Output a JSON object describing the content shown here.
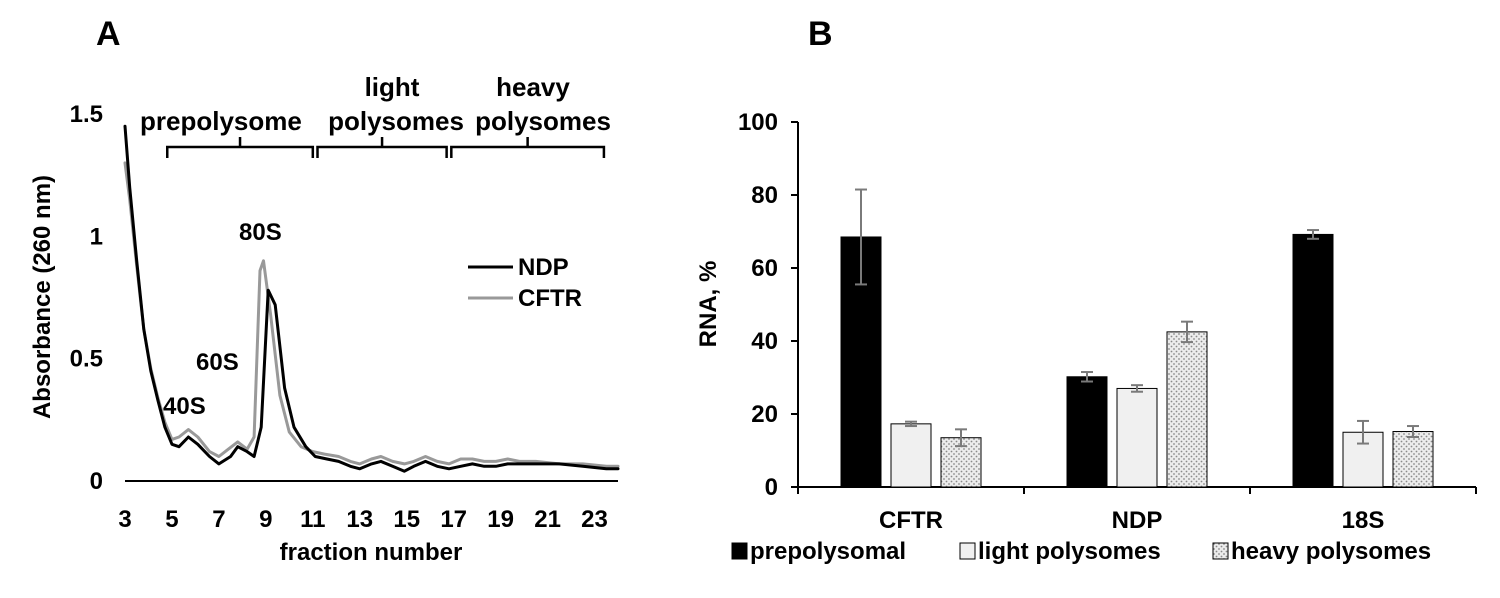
{
  "panels": {
    "a_label": "A",
    "b_label": "B"
  },
  "chart_data": [
    {
      "type": "line",
      "ylabel": "Absorbance (260 nm)",
      "xlabel": "fraction number",
      "xlim": [
        3,
        24
      ],
      "ylim": [
        0,
        1.5
      ],
      "xticks": [
        "3",
        "5",
        "7",
        "9",
        "11",
        "13",
        "15",
        "17",
        "19",
        "21",
        "23"
      ],
      "yticks": [
        "0",
        "0.5",
        "1",
        "1.5"
      ],
      "legend": {
        "position": "right",
        "entries": [
          "NDP",
          "CFTR"
        ]
      },
      "colors": {
        "NDP": "#000000",
        "CFTR": "#999999"
      },
      "annotations": {
        "peak_40s": "40S",
        "peak_60s": "60S",
        "peak_80s": "80S",
        "region_prepolysome": "prepolysome",
        "region_light_1": "light",
        "region_light_2": "polysomes",
        "region_heavy_1": "heavy",
        "region_heavy_2": "polysomes"
      },
      "region_bounds": {
        "prepolysome": [
          4.8,
          11.0
        ],
        "light": [
          11.2,
          16.7
        ],
        "heavy": [
          16.9,
          23.4
        ]
      },
      "series": [
        {
          "name": "NDP",
          "points": [
            [
              3.0,
              1.45
            ],
            [
              3.2,
              1.2
            ],
            [
              3.5,
              0.9
            ],
            [
              3.8,
              0.62
            ],
            [
              4.1,
              0.45
            ],
            [
              4.4,
              0.33
            ],
            [
              4.7,
              0.22
            ],
            [
              5.0,
              0.15
            ],
            [
              5.3,
              0.14
            ],
            [
              5.7,
              0.18
            ],
            [
              6.1,
              0.15
            ],
            [
              6.6,
              0.1
            ],
            [
              7.0,
              0.07
            ],
            [
              7.5,
              0.1
            ],
            [
              7.8,
              0.14
            ],
            [
              8.2,
              0.12
            ],
            [
              8.5,
              0.1
            ],
            [
              8.8,
              0.22
            ],
            [
              9.1,
              0.78
            ],
            [
              9.4,
              0.72
            ],
            [
              9.8,
              0.38
            ],
            [
              10.2,
              0.22
            ],
            [
              10.7,
              0.14
            ],
            [
              11.1,
              0.1
            ],
            [
              11.6,
              0.09
            ],
            [
              12.1,
              0.08
            ],
            [
              12.6,
              0.06
            ],
            [
              13.0,
              0.05
            ],
            [
              13.5,
              0.07
            ],
            [
              13.9,
              0.08
            ],
            [
              14.4,
              0.06
            ],
            [
              14.9,
              0.04
            ],
            [
              15.3,
              0.06
            ],
            [
              15.8,
              0.08
            ],
            [
              16.3,
              0.06
            ],
            [
              16.8,
              0.05
            ],
            [
              17.3,
              0.06
            ],
            [
              17.8,
              0.07
            ],
            [
              18.3,
              0.06
            ],
            [
              18.8,
              0.06
            ],
            [
              19.3,
              0.07
            ],
            [
              19.8,
              0.07
            ],
            [
              20.5,
              0.07
            ],
            [
              21.5,
              0.07
            ],
            [
              22.5,
              0.06
            ],
            [
              23.5,
              0.05
            ],
            [
              24.0,
              0.05
            ]
          ]
        },
        {
          "name": "CFTR",
          "points": [
            [
              3.0,
              1.3
            ],
            [
              3.2,
              1.15
            ],
            [
              3.5,
              0.88
            ],
            [
              3.8,
              0.62
            ],
            [
              4.1,
              0.46
            ],
            [
              4.4,
              0.34
            ],
            [
              4.7,
              0.24
            ],
            [
              5.0,
              0.17
            ],
            [
              5.3,
              0.18
            ],
            [
              5.7,
              0.21
            ],
            [
              6.1,
              0.18
            ],
            [
              6.6,
              0.12
            ],
            [
              7.0,
              0.1
            ],
            [
              7.4,
              0.13
            ],
            [
              7.8,
              0.16
            ],
            [
              8.2,
              0.13
            ],
            [
              8.5,
              0.18
            ],
            [
              8.75,
              0.86
            ],
            [
              8.9,
              0.9
            ],
            [
              9.2,
              0.68
            ],
            [
              9.6,
              0.35
            ],
            [
              10.0,
              0.2
            ],
            [
              10.5,
              0.14
            ],
            [
              11.0,
              0.12
            ],
            [
              11.5,
              0.11
            ],
            [
              12.1,
              0.1
            ],
            [
              12.6,
              0.08
            ],
            [
              13.0,
              0.07
            ],
            [
              13.5,
              0.09
            ],
            [
              13.9,
              0.1
            ],
            [
              14.4,
              0.08
            ],
            [
              14.9,
              0.07
            ],
            [
              15.3,
              0.08
            ],
            [
              15.8,
              0.1
            ],
            [
              16.3,
              0.08
            ],
            [
              16.8,
              0.07
            ],
            [
              17.3,
              0.09
            ],
            [
              17.8,
              0.09
            ],
            [
              18.3,
              0.08
            ],
            [
              18.8,
              0.08
            ],
            [
              19.3,
              0.09
            ],
            [
              19.8,
              0.08
            ],
            [
              20.5,
              0.08
            ],
            [
              21.5,
              0.07
            ],
            [
              22.5,
              0.07
            ],
            [
              23.5,
              0.06
            ],
            [
              24.0,
              0.06
            ]
          ]
        }
      ]
    },
    {
      "type": "bar",
      "ylabel": "RNA, %",
      "xlabel": "",
      "ylim": [
        0,
        100
      ],
      "yticks": [
        "0",
        "20",
        "40",
        "60",
        "80",
        "100"
      ],
      "categories": [
        "CFTR",
        "NDP",
        "18S"
      ],
      "legend": {
        "position": "bottom"
      },
      "colors": {
        "prepolysomal": "#000000",
        "light polysomes": "#f0f0f0",
        "heavy polysomes": "#d9d9d9"
      },
      "series": [
        {
          "name": "prepolysomal",
          "values": [
            68.5,
            30.2,
            69.2
          ],
          "errors": [
            13.0,
            1.3,
            1.2
          ]
        },
        {
          "name": "light polysomes",
          "values": [
            17.3,
            27.0,
            15.0
          ],
          "errors": [
            0.6,
            0.9,
            3.1
          ]
        },
        {
          "name": "heavy polysomes",
          "values": [
            13.5,
            42.5,
            15.2
          ],
          "errors": [
            2.3,
            2.8,
            1.5
          ]
        }
      ]
    }
  ]
}
